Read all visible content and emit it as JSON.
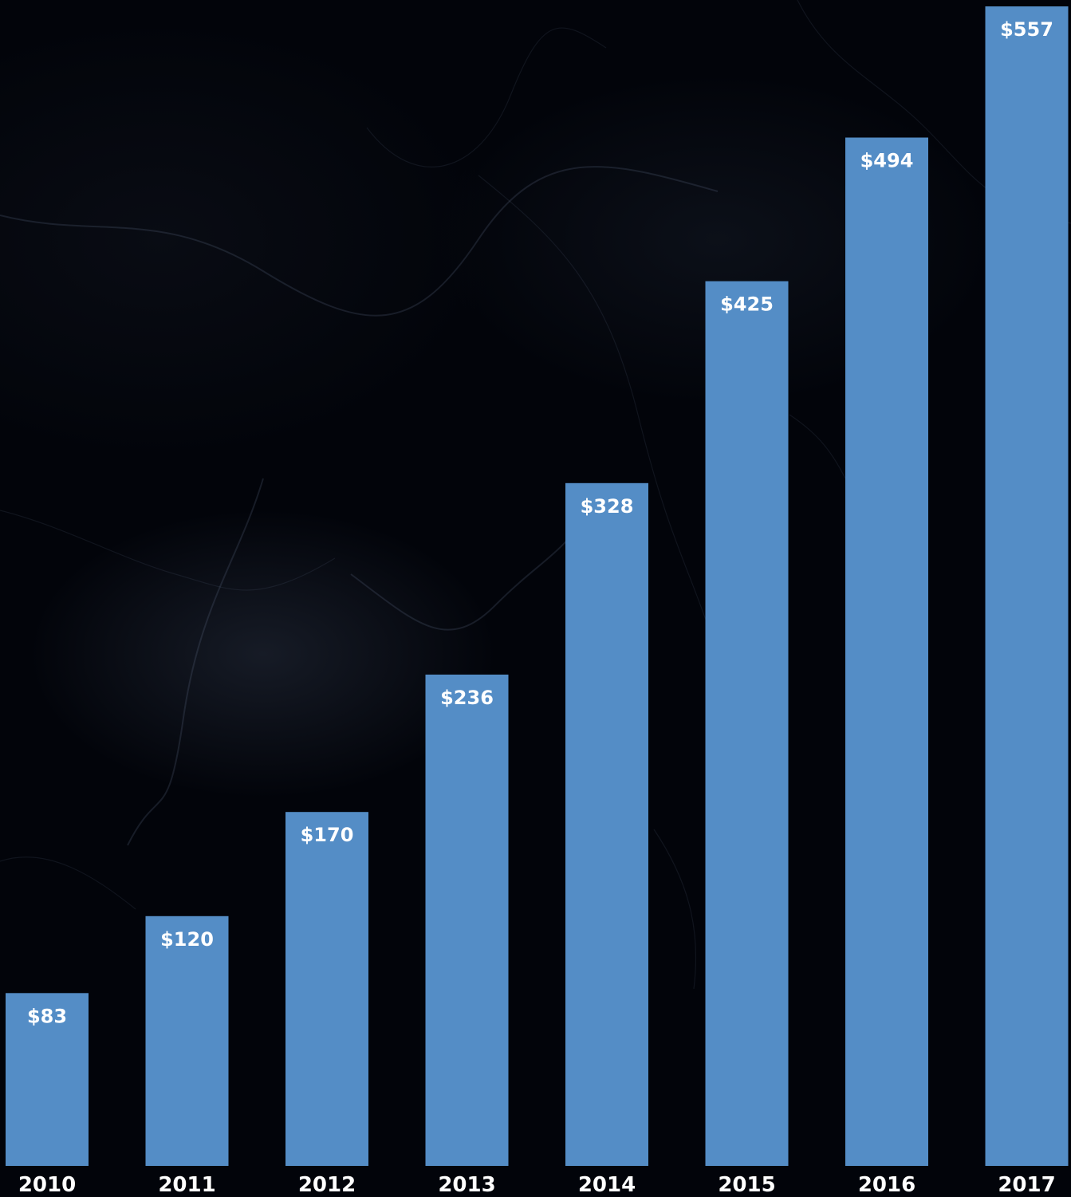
{
  "chart_data": {
    "type": "bar",
    "categories": [
      "2010",
      "2011",
      "2012",
      "2013",
      "2014",
      "2015",
      "2016",
      "2017"
    ],
    "values": [
      83,
      120,
      170,
      236,
      328,
      425,
      494,
      557
    ],
    "data_labels": [
      "$83",
      "$120",
      "$170",
      "$236",
      "$328",
      "$425",
      "$494",
      "$557"
    ],
    "title": "",
    "xlabel": "",
    "ylabel": "",
    "ylim": [
      0,
      557
    ],
    "grid": false,
    "legend": "none",
    "colors": {
      "bar": "#548dc6",
      "background": "#02040a",
      "text": "#ffffff"
    }
  }
}
